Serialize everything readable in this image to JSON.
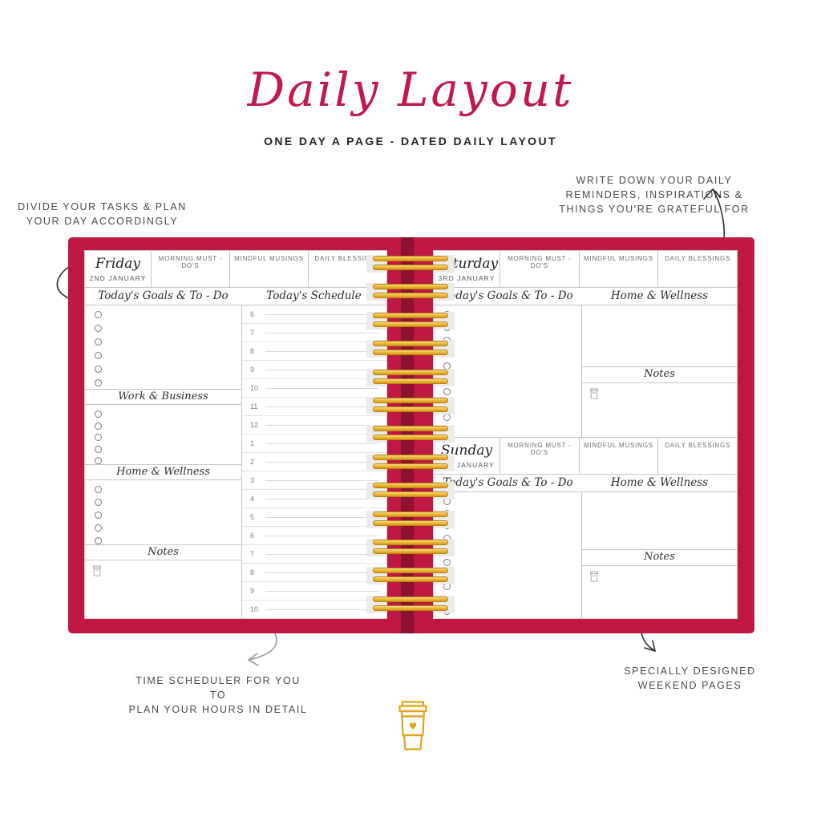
{
  "page": {
    "title": "Daily Layout",
    "subtitle": "ONE DAY A PAGE - DATED DAILY LAYOUT"
  },
  "annotations": {
    "left": {
      "line1": "DIVIDE YOUR TASKS & PLAN",
      "line2": "YOUR DAY ACCORDINGLY"
    },
    "top_right": {
      "line1": "WRITE DOWN YOUR DAILY",
      "line2": "REMINDERS, INSPIRATIONS &",
      "line3": "THINGS YOU'RE GRATEFUL FOR"
    },
    "bottom_left": {
      "line1": "TIME SCHEDULER FOR YOU TO",
      "line2": "PLAN YOUR HOURS IN DETAIL"
    },
    "bottom_right": {
      "line1": "SPECIALLY DESIGNED",
      "line2": "WEEKEND PAGES"
    }
  },
  "planner": {
    "binding": {
      "ring_pairs": "13"
    },
    "left_page": {
      "day": "Friday",
      "date": "2ND JANUARY",
      "columns": {
        "c1": "MORNING MUST - DO'S",
        "c2": "MINDFUL MUSINGS",
        "c3": "DAILY BLESSINGS"
      },
      "goals_title": "Today's Goals & To - Do",
      "schedule_title": "Today's Schedule",
      "sections": {
        "goals_rows": "6",
        "work": {
          "label": "Work & Business",
          "rows": "5"
        },
        "home": {
          "label": "Home & Wellness",
          "rows": "5"
        },
        "notes": {
          "label": "Notes"
        }
      },
      "schedule_hours": [
        "6",
        "7",
        "8",
        "9",
        "10",
        "11",
        "12",
        "1",
        "2",
        "3",
        "4",
        "5",
        "6",
        "7",
        "8",
        "9",
        "10"
      ]
    },
    "right_page": {
      "days": [
        {
          "day": "Saturday",
          "date": "3RD JANUARY",
          "columns": {
            "c1": "MORNING MUST - DO'S",
            "c2": "MINDFUL MUSINGS",
            "c3": "DAILY BLESSINGS"
          },
          "goals_title": "Today's Goals & To - Do",
          "home_title": "Home & Wellness",
          "notes_label": "Notes",
          "goal_rows": "10"
        },
        {
          "day": "Sunday",
          "date": "4TH JANUARY",
          "columns": {
            "c1": "MORNING MUST - DO'S",
            "c2": "MINDFUL MUSINGS",
            "c3": "DAILY BLESSINGS"
          },
          "goals_title": "Today's Goals & To - Do",
          "home_title": "Home & Wellness",
          "notes_label": "Notes",
          "goal_rows": "10"
        }
      ]
    }
  },
  "icons": {
    "notes": "coffee-cup-mini-icon",
    "footer": "coffee-cup-heart-icon"
  },
  "colors": {
    "cover_red": "#BE1843",
    "spine_red": "#8D1130",
    "title_red": "#C2194B",
    "gold": "#E2A31F",
    "annotation_gray": "#4B4B4B"
  }
}
